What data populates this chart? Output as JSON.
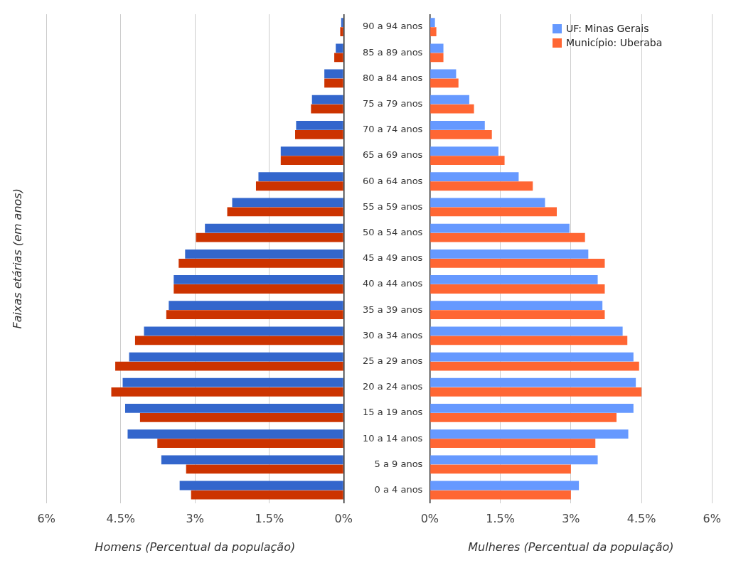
{
  "chart_data": [
    {
      "type": "bar",
      "orientation": "horizontal",
      "ylabel": "Faixas etárias (em anos)",
      "xlabel": "Homens (Percentual da população)",
      "categories": [
        null,
        null,
        null,
        null,
        null,
        null,
        null,
        null,
        null,
        null,
        null,
        null,
        null,
        null,
        null,
        null,
        null,
        null,
        null
      ],
      "series": [
        {
          "color": "#3366cc",
          "values": [
            0.05,
            0.16,
            0.39,
            0.64,
            0.96,
            1.27,
            1.72,
            2.25,
            2.8,
            3.2,
            3.43,
            3.53,
            4.03,
            4.33,
            4.46,
            4.41,
            4.36,
            3.68,
            3.31
          ]
        },
        {
          "color": "#cc3300",
          "values": [
            0.07,
            0.19,
            0.39,
            0.66,
            0.98,
            1.27,
            1.77,
            2.35,
            2.98,
            3.33,
            3.43,
            3.58,
            4.21,
            4.61,
            4.69,
            4.11,
            3.76,
            3.18,
            3.08
          ]
        }
      ],
      "xlim": [
        6,
        0
      ],
      "xticks": [
        {
          "value": 6,
          "label": "6%"
        },
        {
          "value": 4.5,
          "label": "4.5%"
        },
        {
          "value": 3,
          "label": "3%"
        },
        {
          "value": 1.5,
          "label": "1.5%"
        },
        {
          "value": 0,
          "label": "0%"
        }
      ],
      "grid": "x",
      "tick_labels": "x"
    },
    {
      "type": "bar",
      "orientation": "horizontal",
      "xlabel": "Mulheres (Percentual da população)",
      "categories": [
        "90 a 94 anos",
        "85 a 89 anos",
        "80 a 84 anos",
        "75 a 79 anos",
        "70 a 74 anos",
        "65 a 69 anos",
        "60 a 64 anos",
        "55 a 59 anos",
        "50 a 54 anos",
        "45 a 49 anos",
        "40 a 44 anos",
        "35 a 39 anos",
        "30 a 34 anos",
        "25 a 29 anos",
        "20 a 24 anos",
        "15 a 19 anos",
        "10 a 14 anos",
        "5 a 9 anos",
        "0 a 4 anos"
      ],
      "series": [
        {
          "name": "UF: Minas Gerais",
          "color": "#6699ff",
          "values": [
            0.11,
            0.29,
            0.56,
            0.84,
            1.17,
            1.46,
            1.89,
            2.45,
            2.97,
            3.37,
            3.57,
            3.67,
            4.1,
            4.33,
            4.38,
            4.33,
            4.22,
            3.57,
            3.17
          ]
        },
        {
          "name": "Município: Uberaba",
          "color": "#ff6633",
          "values": [
            0.14,
            0.29,
            0.61,
            0.94,
            1.32,
            1.59,
            2.19,
            2.7,
            3.3,
            3.72,
            3.72,
            3.72,
            4.2,
            4.45,
            4.5,
            3.97,
            3.52,
            3,
            3
          ]
        }
      ],
      "xlim": [
        0,
        6
      ],
      "xticks": [
        {
          "value": 0,
          "label": "0%"
        },
        {
          "value": 1.5,
          "label": "1.5%"
        },
        {
          "value": 3,
          "label": "3%"
        },
        {
          "value": 4.5,
          "label": "4.5%"
        },
        {
          "value": 6,
          "label": "6%"
        }
      ],
      "grid": "x",
      "legend": "top right"
    }
  ]
}
